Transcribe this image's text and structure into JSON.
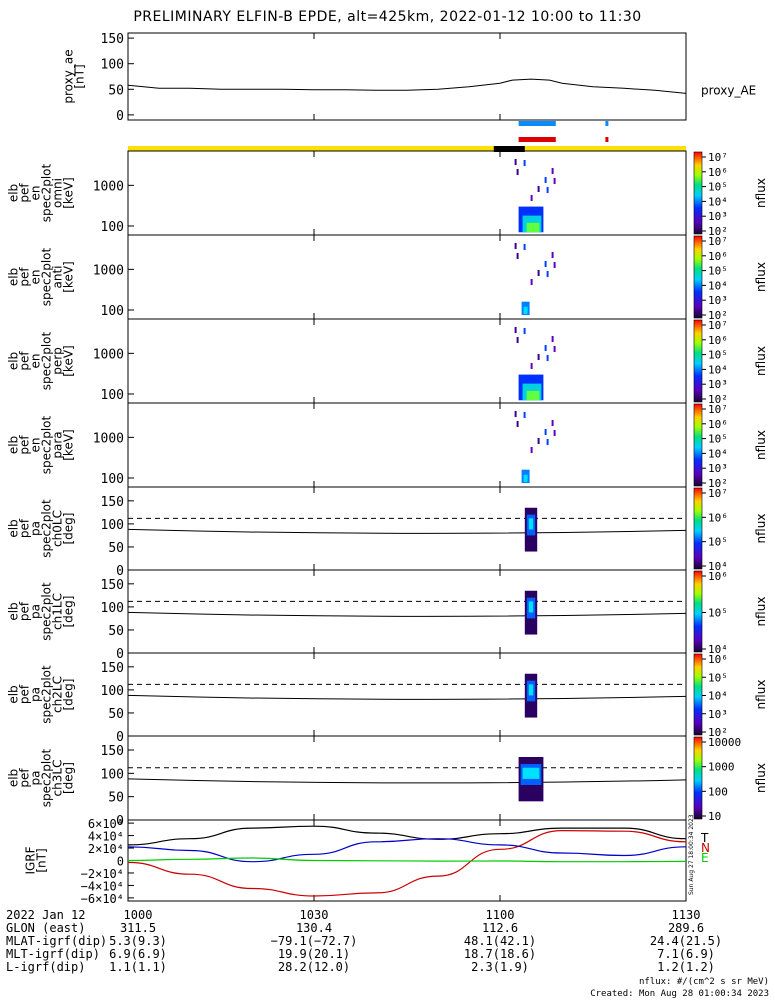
{
  "title": "PRELIMINARY ELFIN-B EPDE, alt=425km, 2022-01-12 10:00 to 11:30",
  "colors": {
    "blue_bar": "#0a8cff",
    "red_bar": "#dd0000",
    "yellow_bar": "#ffe000",
    "black_bar": "#000000",
    "bfield_x": "#0000cc",
    "bfield_y": "#cc0000",
    "bfield_z": "#00cc00",
    "bfield_total": "#000000"
  },
  "chart_data": [
    {
      "type": "line",
      "panel": "proxy_ae",
      "ylabel": [
        "proxy_ae",
        "[nT]"
      ],
      "legend": "proxy_AE",
      "ylim": [
        -10,
        160
      ],
      "yticks": [
        "0",
        "50",
        "100",
        "150"
      ],
      "x": [
        "10:00",
        "10:05",
        "10:10",
        "10:15",
        "10:20",
        "10:25",
        "10:30",
        "10:35",
        "10:40",
        "10:45",
        "10:50",
        "10:55",
        "11:00",
        "11:02",
        "11:05",
        "11:08",
        "11:10",
        "11:15",
        "11:20",
        "11:25",
        "11:30"
      ],
      "values": [
        58,
        52,
        52,
        50,
        50,
        50,
        49,
        49,
        48,
        48,
        50,
        55,
        62,
        68,
        70,
        68,
        62,
        55,
        52,
        48,
        42
      ]
    },
    {
      "type": "bar",
      "panel": "status_bars",
      "items": [
        {
          "name": "blue",
          "segments": [
            [
              "11:03",
              "11:09"
            ],
            [
              "11:17",
              "11:17"
            ]
          ]
        },
        {
          "name": "red",
          "segments": [
            [
              "11:03",
              "11:09"
            ],
            [
              "11:17",
              "11:17"
            ]
          ]
        },
        {
          "name": "yellow",
          "segments": [
            [
              "10:00",
              "11:30"
            ]
          ]
        },
        {
          "name": "black",
          "segments": [
            [
              "10:59",
              "11:04"
            ]
          ]
        }
      ]
    },
    {
      "type": "heatmap",
      "panel": "omni",
      "ylabel": [
        "elb",
        "pef",
        "en",
        "spec2plot",
        "omni",
        "[keV]"
      ],
      "yticks": [
        "100",
        "1000"
      ],
      "colorbar": {
        "label": "nflux",
        "ticks": [
          "10²",
          "10³",
          "10⁴",
          "10⁵",
          "10⁶",
          "10⁷"
        ]
      },
      "active_window": [
        "11:03",
        "11:07"
      ]
    },
    {
      "type": "heatmap",
      "panel": "anti",
      "ylabel": [
        "elb",
        "pef",
        "en",
        "spec2plot",
        "anti",
        "[keV]"
      ],
      "yticks": [
        "100",
        "1000"
      ],
      "colorbar": {
        "label": "nflux",
        "ticks": [
          "10²",
          "10³",
          "10⁴",
          "10⁵",
          "10⁶",
          "10⁷"
        ]
      },
      "active_window": [
        "11:03",
        "11:06"
      ]
    },
    {
      "type": "heatmap",
      "panel": "perp",
      "ylabel": [
        "elb",
        "pef",
        "en",
        "spec2plot",
        "perp",
        "[keV]"
      ],
      "yticks": [
        "100",
        "1000"
      ],
      "colorbar": {
        "label": "nflux",
        "ticks": [
          "10²",
          "10³",
          "10⁴",
          "10⁵",
          "10⁶",
          "10⁷"
        ]
      },
      "active_window": [
        "11:03",
        "11:07"
      ]
    },
    {
      "type": "heatmap",
      "panel": "para",
      "ylabel": [
        "elb",
        "pef",
        "en",
        "spec2plot",
        "para",
        "[keV]"
      ],
      "yticks": [
        "100",
        "1000"
      ],
      "colorbar": {
        "label": "nflux",
        "ticks": [
          "10²",
          "10³",
          "10⁴",
          "10⁵",
          "10⁶",
          "10⁷"
        ]
      },
      "active_window": [
        "11:03",
        "11:06"
      ]
    },
    {
      "type": "heatmap",
      "panel": "ch0LC",
      "ylabel": [
        "elb",
        "pef",
        "pa",
        "spec2plot",
        "ch0LC",
        "[deg]"
      ],
      "ylim": [
        0,
        180
      ],
      "yticks": [
        "0",
        "50",
        "100",
        "150"
      ],
      "colorbar": {
        "label": "nflux",
        "ticks": [
          "10⁴",
          "10⁵",
          "10⁶",
          "10⁷"
        ]
      },
      "active_window": [
        "11:04",
        "11:06"
      ]
    },
    {
      "type": "heatmap",
      "panel": "ch1LC",
      "ylabel": [
        "elb",
        "pef",
        "pa",
        "spec2plot",
        "ch1LC",
        "[deg]"
      ],
      "ylim": [
        0,
        180
      ],
      "yticks": [
        "0",
        "50",
        "100",
        "150"
      ],
      "colorbar": {
        "label": "nflux",
        "ticks": [
          "10⁴",
          "10⁵",
          "10⁶"
        ]
      },
      "active_window": [
        "11:04",
        "11:06"
      ]
    },
    {
      "type": "heatmap",
      "panel": "ch2LC",
      "ylabel": [
        "elb",
        "pef",
        "pa",
        "spec2plot",
        "ch2LC",
        "[deg]"
      ],
      "ylim": [
        0,
        180
      ],
      "yticks": [
        "0",
        "50",
        "100",
        "150"
      ],
      "colorbar": {
        "label": "nflux",
        "ticks": [
          "10²",
          "10³",
          "10⁴",
          "10⁵",
          "10⁶"
        ]
      },
      "active_window": [
        "11:04",
        "11:06"
      ]
    },
    {
      "type": "heatmap",
      "panel": "ch3LC",
      "ylabel": [
        "elb",
        "pef",
        "pa",
        "spec2plot",
        "ch3LC",
        "[deg]"
      ],
      "ylim": [
        0,
        180
      ],
      "yticks": [
        "0",
        "50",
        "100",
        "150"
      ],
      "colorbar": {
        "label": "nflux",
        "ticks": [
          "10",
          "100",
          "1000",
          "10000"
        ]
      },
      "active_window": [
        "11:03",
        "11:07"
      ]
    },
    {
      "type": "line",
      "panel": "bfield",
      "ylabel": [
        "IGRF",
        "[nT]"
      ],
      "ylim": [
        -65000,
        65000
      ],
      "yticks": [
        "−6×10⁴",
        "−4×10⁴",
        "−2×10⁴",
        "0",
        "2×10⁴",
        "4×10⁴",
        "6×10⁴"
      ],
      "legend": [
        "T",
        "N",
        "E"
      ],
      "x": [
        "10:00",
        "10:10",
        "10:20",
        "10:30",
        "10:40",
        "10:50",
        "11:00",
        "11:10",
        "11:20",
        "11:30"
      ],
      "series": [
        {
          "name": "T",
          "values": [
            25000,
            35000,
            52000,
            55000,
            44000,
            34000,
            43000,
            52000,
            52000,
            35000
          ]
        },
        {
          "name": "N",
          "values": [
            -3000,
            -22000,
            -45000,
            -57000,
            -52000,
            -25000,
            18000,
            48000,
            47000,
            30000
          ]
        },
        {
          "name": "E",
          "values": [
            22000,
            16000,
            -2000,
            10000,
            30000,
            35000,
            25000,
            12000,
            8000,
            22000
          ]
        },
        {
          "name": "G",
          "values": [
            0,
            2000,
            4000,
            0,
            -500,
            -1000,
            -800,
            -2000,
            -2000,
            -1500
          ]
        }
      ]
    }
  ],
  "vertical_note": "Sun Aug 27 18:00:34 2023",
  "xaxis": {
    "rows": [
      {
        "label": "2022 Jan 12",
        "values": [
          "1000",
          "1030",
          "1100",
          "1130"
        ]
      },
      {
        "label": "GLON (east)",
        "values": [
          "311.5",
          "130.4",
          "112.6",
          "289.6"
        ]
      },
      {
        "label": "MLAT-igrf(dip)",
        "values": [
          "5.3(9.3)",
          "−79.1(−72.7)",
          "48.1(42.1)",
          "24.4(21.5)"
        ]
      },
      {
        "label": "MLT-igrf(dip)",
        "values": [
          "6.9(6.9)",
          "19.9(20.1)",
          "18.7(18.6)",
          "7.1(6.9)"
        ]
      },
      {
        "label": "L-igrf(dip)",
        "values": [
          "1.1(1.1)",
          "28.2(12.0)",
          "2.3(1.9)",
          "1.2(1.2)"
        ]
      }
    ]
  },
  "footer": {
    "units": "nflux: #/(cm^2 s sr MeV)",
    "created": "Created: Mon Aug 28 01:00:34 2023"
  }
}
